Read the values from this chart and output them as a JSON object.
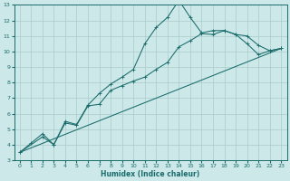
{
  "xlabel": "Humidex (Indice chaleur)",
  "bg_color": "#cce8e8",
  "grid_color": "#aacccc",
  "line_color": "#1a6b6b",
  "xlim": [
    -0.5,
    23.5
  ],
  "ylim": [
    3,
    13
  ],
  "xticks": [
    0,
    1,
    2,
    3,
    4,
    5,
    6,
    7,
    8,
    9,
    10,
    11,
    12,
    13,
    14,
    15,
    16,
    17,
    18,
    19,
    20,
    21,
    22,
    23
  ],
  "yticks": [
    3,
    4,
    5,
    6,
    7,
    8,
    9,
    10,
    11,
    12,
    13
  ],
  "line1_x": [
    0,
    1,
    2,
    3,
    4,
    5,
    6,
    7,
    8,
    9,
    10,
    11,
    12,
    13,
    14,
    15,
    16,
    17,
    18,
    19,
    20,
    21,
    22,
    23
  ],
  "line1_y": [
    3.5,
    4.1,
    4.7,
    4.0,
    5.5,
    5.3,
    6.55,
    7.3,
    7.9,
    8.35,
    8.85,
    10.5,
    11.55,
    12.2,
    13.3,
    12.2,
    11.2,
    11.35,
    11.35,
    11.1,
    10.5,
    9.8,
    10.05,
    10.2
  ],
  "line2_x": [
    0,
    2,
    3,
    4,
    5,
    6,
    7,
    8,
    9,
    10,
    11,
    12,
    13,
    14,
    15,
    16,
    17,
    18,
    19,
    20,
    21,
    22,
    23
  ],
  "line2_y": [
    3.5,
    4.5,
    4.0,
    5.4,
    5.25,
    6.5,
    6.6,
    7.5,
    7.8,
    8.1,
    8.35,
    8.85,
    9.3,
    10.3,
    10.7,
    11.15,
    11.1,
    11.35,
    11.1,
    11.0,
    10.4,
    10.05,
    10.2
  ],
  "line3_x": [
    0,
    23
  ],
  "line3_y": [
    3.5,
    10.2
  ]
}
